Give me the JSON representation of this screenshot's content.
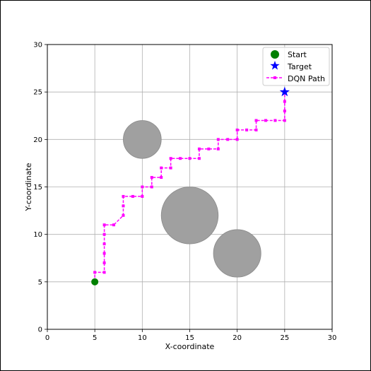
{
  "chart_data": {
    "type": "scatter",
    "title": "",
    "xlabel": "X-coordinate",
    "ylabel": "Y-coordinate",
    "xlim": [
      0,
      30
    ],
    "ylim": [
      0,
      30
    ],
    "xticks": [
      "0",
      "5",
      "10",
      "15",
      "20",
      "25",
      "30"
    ],
    "yticks": [
      "0",
      "5",
      "10",
      "15",
      "20",
      "25",
      "30"
    ],
    "grid": true,
    "legend_position": "top-right",
    "obstacles": [
      {
        "cx": 10,
        "cy": 20,
        "r": 2
      },
      {
        "cx": 15,
        "cy": 12,
        "r": 3
      },
      {
        "cx": 20,
        "cy": 8,
        "r": 2.5
      }
    ],
    "obstacle_color": "#a0a0a0",
    "start": {
      "x": 5,
      "y": 5,
      "label": "Start",
      "color": "#008000"
    },
    "target": {
      "x": 25,
      "y": 25,
      "label": "Target",
      "color": "#0000ff"
    },
    "path": {
      "label": "DQN Path",
      "color": "#ff00ff",
      "x": [
        5,
        5,
        6,
        6,
        6,
        6,
        6,
        6,
        7,
        8,
        8,
        8,
        9,
        10,
        10,
        11,
        11,
        12,
        12,
        13,
        13,
        14,
        15,
        16,
        16,
        17,
        18,
        18,
        19,
        20,
        20,
        21,
        22,
        22,
        23,
        24,
        25,
        25,
        25,
        25
      ],
      "y": [
        5,
        6,
        6,
        7,
        8,
        9,
        10,
        11,
        11,
        12,
        13,
        14,
        14,
        14,
        15,
        15,
        16,
        16,
        17,
        17,
        18,
        18,
        18,
        18,
        19,
        19,
        19,
        20,
        20,
        20,
        21,
        21,
        21,
        22,
        22,
        22,
        22,
        23,
        24,
        25
      ]
    }
  }
}
